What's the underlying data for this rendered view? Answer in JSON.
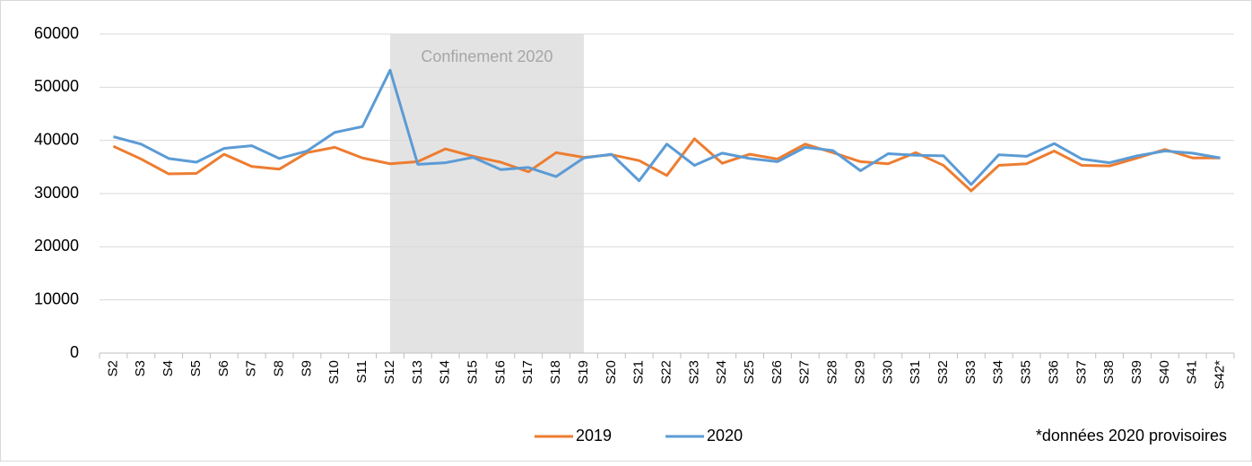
{
  "chart_data": {
    "type": "line",
    "categories": [
      "S2",
      "S3",
      "S4",
      "S5",
      "S6",
      "S7",
      "S8",
      "S9",
      "S10",
      "S11",
      "S12",
      "S13",
      "S14",
      "S15",
      "S16",
      "S17",
      "S18",
      "S19",
      "S20",
      "S21",
      "S22",
      "S23",
      "S24",
      "S25",
      "S26",
      "S27",
      "S28",
      "S29",
      "S30",
      "S31",
      "S32",
      "S33",
      "S34",
      "S35",
      "S36",
      "S37",
      "S38",
      "S39",
      "S40",
      "S41",
      "S42*"
    ],
    "series": [
      {
        "name": "2019",
        "color": "#ed7d31",
        "values": [
          38900,
          36500,
          33700,
          33800,
          37400,
          35100,
          34600,
          37700,
          38700,
          36700,
          35600,
          36000,
          38400,
          37000,
          35900,
          34100,
          37700,
          36800,
          37300,
          36200,
          33400,
          40300,
          35700,
          37400,
          36500,
          39300,
          37700,
          36000,
          35600,
          37700,
          35300,
          30500,
          35300,
          35600,
          38000,
          35300,
          35200,
          36700,
          38300,
          36700,
          36700
        ]
      },
      {
        "name": "2020",
        "color": "#5b9bd5",
        "values": [
          40700,
          39300,
          36600,
          35900,
          38500,
          39000,
          36600,
          38000,
          41500,
          42600,
          53200,
          35500,
          35800,
          36800,
          34500,
          34900,
          33200,
          36700,
          37400,
          32400,
          39300,
          35300,
          37600,
          36600,
          36000,
          38700,
          38100,
          34300,
          37500,
          37200,
          37100,
          31700,
          37300,
          37000,
          39400,
          36500,
          35800,
          37100,
          38000,
          37600,
          36700
        ]
      }
    ],
    "ylim": [
      0,
      60000
    ],
    "yticks": [
      0,
      10000,
      20000,
      30000,
      40000,
      50000,
      60000
    ],
    "grid": true,
    "annotation": {
      "text": "Confinement 2020",
      "range": [
        "S12",
        "S19"
      ]
    },
    "footnote": "*données 2020 provisoires",
    "legend": "bottom"
  }
}
